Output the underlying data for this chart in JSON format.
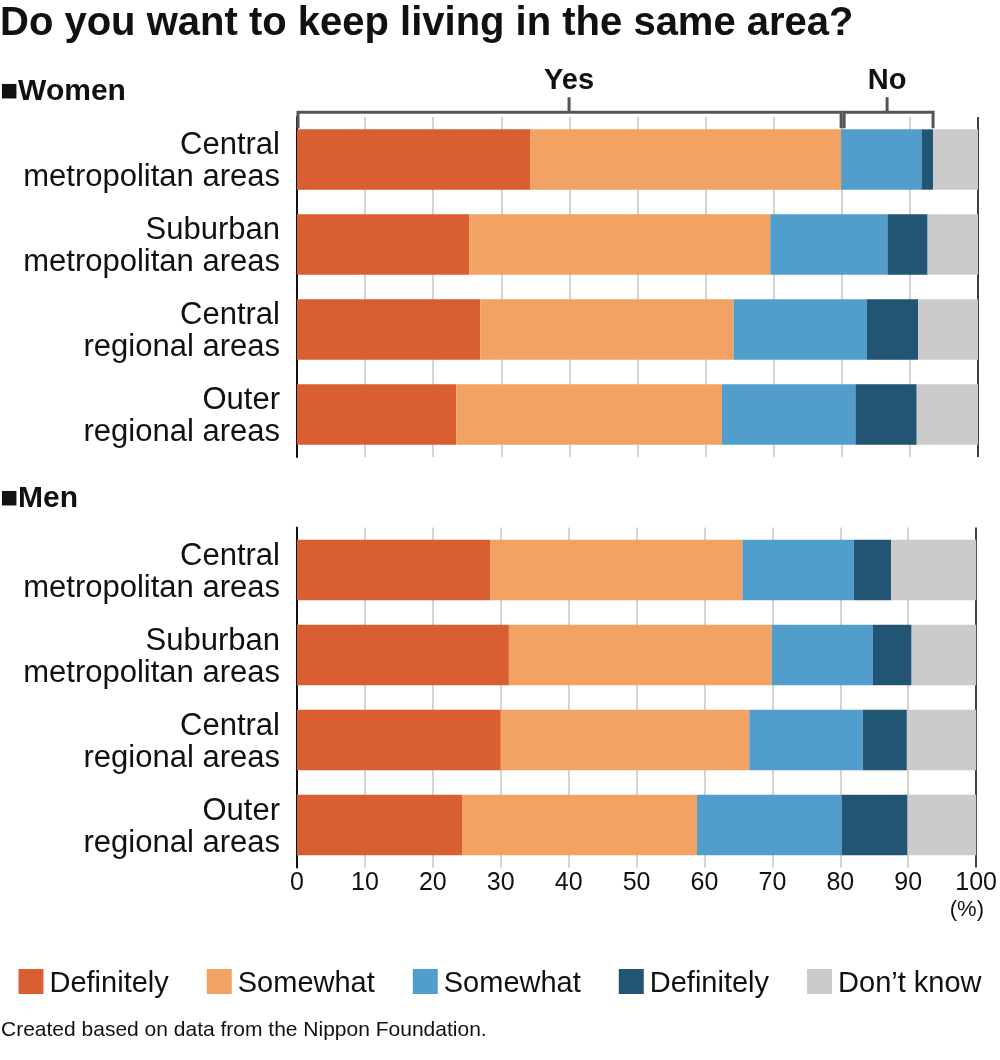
{
  "chart_data": [
    {
      "type": "bar",
      "title": "Do you want to keep living in the same area?",
      "subtitle": "■Women",
      "orientation": "horizontal",
      "stacked": true,
      "categories": [
        "Central metropolitan areas",
        "Suburban metropolitan areas",
        "Central regional areas",
        "Outer regional areas"
      ],
      "series": [
        {
          "color": "#d95e32",
          "values": [
            34.3,
            25.3,
            26.9,
            23.4
          ]
        },
        {
          "color": "#f2a262",
          "values": [
            45.6,
            44.2,
            37.2,
            39.0
          ]
        },
        {
          "color": "#519dcb",
          "values": [
            11.8,
            17.2,
            19.6,
            19.6
          ]
        },
        {
          "color": "#225474",
          "values": [
            1.7,
            5.9,
            7.5,
            9.0
          ]
        },
        {
          "color": "#cbcbcb",
          "values": [
            6.6,
            7.4,
            8.8,
            9.0
          ]
        }
      ],
      "xlim": [
        0,
        100
      ],
      "xticks": [
        0,
        10,
        20,
        30,
        40,
        50,
        60,
        70,
        80,
        90,
        100
      ],
      "grid": "x",
      "tick_labels": "y",
      "annotations": [
        "Yes",
        "No"
      ]
    },
    {
      "type": "bar",
      "title": "■Men",
      "orientation": "horizontal",
      "stacked": true,
      "categories": [
        "Central metropolitan areas",
        "Suburban metropolitan areas",
        "Central regional areas",
        "Outer regional areas"
      ],
      "series": [
        {
          "name": "Definitely",
          "color": "#d95e32",
          "values": [
            28.5,
            31.2,
            30.0,
            24.3
          ]
        },
        {
          "name": "Somewhat",
          "color": "#f2a262",
          "values": [
            37.1,
            38.7,
            36.6,
            34.6
          ]
        },
        {
          "name": "Somewhat",
          "color": "#519dcb",
          "values": [
            16.4,
            14.9,
            16.7,
            21.3
          ]
        },
        {
          "name": "Definitely",
          "color": "#225474",
          "values": [
            5.5,
            5.7,
            6.5,
            9.7
          ]
        },
        {
          "name": "Don’t know",
          "color": "#cbcbcb",
          "values": [
            12.5,
            9.5,
            10.2,
            10.1
          ]
        }
      ],
      "xlim": [
        0,
        100
      ],
      "xticks": [
        0,
        10,
        20,
        30,
        40,
        50,
        60,
        70,
        80,
        90,
        100
      ],
      "xlabel": "(%)",
      "grid": "x",
      "legend": "bottom",
      "annotations": [
        "Created based on data from the Nippon Foundation."
      ]
    }
  ]
}
